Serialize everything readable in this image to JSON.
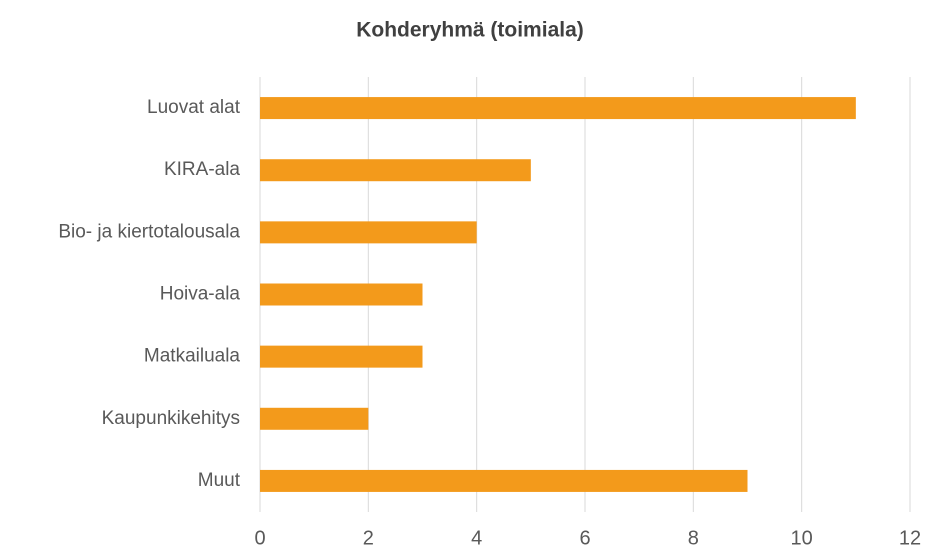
{
  "chart_data": {
    "type": "bar",
    "orientation": "horizontal",
    "title": "Kohderyhmä (toimiala)",
    "categories": [
      "Luovat alat",
      "KIRA-ala",
      "Bio- ja kiertotalousala",
      "Hoiva-ala",
      "Matkailuala",
      "Kaupunkikehitys",
      "Muut"
    ],
    "values": [
      11,
      5,
      4,
      3,
      3,
      2,
      9
    ],
    "color": "#f39a1b",
    "xlim": [
      0,
      12
    ],
    "xticks": [
      0,
      2,
      4,
      6,
      8,
      10,
      12
    ],
    "grid": true
  }
}
